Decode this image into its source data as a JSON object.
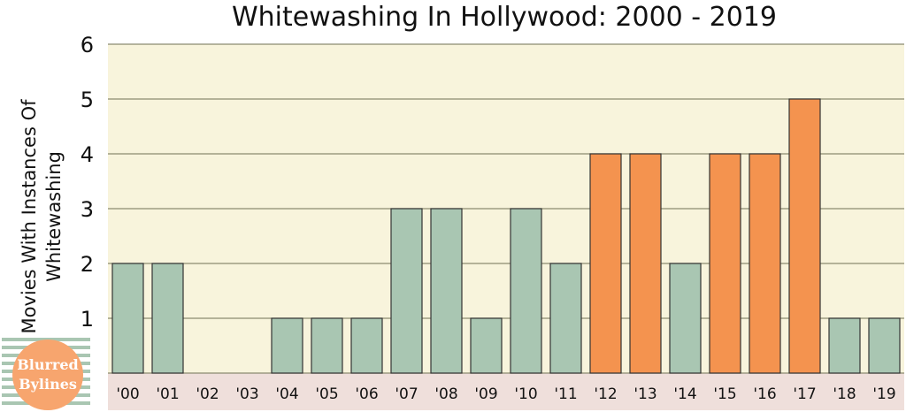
{
  "chart_data": {
    "type": "bar",
    "title": "Whitewashing In Hollywood: 2000 - 2019",
    "ylabel_lines": [
      "Movies With Instances Of",
      "Whitewashing"
    ],
    "xlabel": "",
    "ylim": [
      0,
      6
    ],
    "yticks": [
      1,
      2,
      3,
      4,
      5,
      6
    ],
    "grid": true,
    "categories": [
      "'00",
      "'01",
      "'02",
      "'03",
      "'04",
      "'05",
      "'06",
      "'07",
      "'08",
      "'09",
      "'10",
      "'11",
      "'12",
      "'13",
      "'14",
      "'15",
      "'16",
      "'17",
      "'18",
      "'19"
    ],
    "values": [
      2,
      2,
      0,
      0,
      1,
      1,
      1,
      3,
      3,
      1,
      3,
      2,
      4,
      4,
      2,
      4,
      4,
      5,
      1,
      1
    ],
    "bar_colors": [
      "#a9c6b2",
      "#a9c6b2",
      "#a9c6b2",
      "#a9c6b2",
      "#a9c6b2",
      "#a9c6b2",
      "#a9c6b2",
      "#a9c6b2",
      "#a9c6b2",
      "#a9c6b2",
      "#a9c6b2",
      "#a9c6b2",
      "#f4934f",
      "#f4934f",
      "#a9c6b2",
      "#f4934f",
      "#f4934f",
      "#f4934f",
      "#a9c6b2",
      "#a9c6b2"
    ]
  },
  "colors": {
    "plot_background": "#f8f4dc",
    "axis_band": "#efdfdb",
    "gridline": "#8a8a70",
    "bar_stroke": "#333333",
    "logo_circle": "#f7a56e"
  },
  "logo": {
    "line1": "Blurred",
    "line2": "Bylines"
  }
}
